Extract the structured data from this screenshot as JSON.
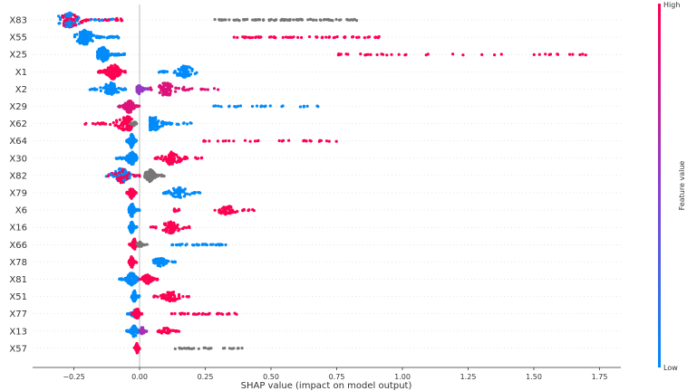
{
  "chart_data": {
    "type": "scatter",
    "subtype": "shap-beeswarm",
    "xlabel": "SHAP value (impact on model output)",
    "xlim": [
      -0.4,
      1.83
    ],
    "xticks": [
      -0.25,
      0.0,
      0.25,
      0.5,
      0.75,
      1.0,
      1.25,
      1.5,
      1.75
    ],
    "xtick_labels": [
      "−0.25",
      "0.00",
      "0.25",
      "0.50",
      "0.75",
      "1.00",
      "1.25",
      "1.50",
      "1.75"
    ],
    "grid": false,
    "zero_line": true,
    "colorbar": {
      "label": "Feature value",
      "high_label": "High",
      "low_label": "Low",
      "high_color": "#ff0052",
      "low_color": "#008bfb",
      "missing_color": "#777777",
      "placement": "right"
    },
    "features": [
      {
        "name": "X83",
        "clusters": [
          {
            "range": [
              -0.31,
              -0.09
            ],
            "peak": -0.27,
            "n": 160,
            "value": "mixed"
          },
          {
            "range": [
              -0.09,
              -0.04
            ],
            "peak": -0.08,
            "n": 10,
            "value": 1
          },
          {
            "range": [
              0.28,
              0.83
            ],
            "peak": 0.62,
            "n": 90,
            "value": null,
            "sparse": true
          }
        ]
      },
      {
        "name": "X55",
        "clusters": [
          {
            "range": [
              -0.25,
              -0.08
            ],
            "peak": -0.21,
            "n": 150,
            "value": 0
          },
          {
            "range": [
              0.35,
              0.93
            ],
            "peak": 0.65,
            "n": 60,
            "value": 1,
            "sparse": true
          }
        ]
      },
      {
        "name": "X25",
        "clusters": [
          {
            "range": [
              -0.16,
              -0.05
            ],
            "peak": -0.14,
            "n": 130,
            "value": 0
          },
          {
            "range": [
              0.75,
              1.73
            ],
            "peak": 1.5,
            "n": 40,
            "value": 1,
            "sparse": true
          }
        ]
      },
      {
        "name": "X1",
        "clusters": [
          {
            "range": [
              -0.16,
              -0.05
            ],
            "peak": -0.1,
            "n": 130,
            "value": 1
          },
          {
            "range": [
              0.06,
              0.24
            ],
            "peak": 0.17,
            "n": 80,
            "value": 0
          }
        ]
      },
      {
        "name": "X2",
        "clusters": [
          {
            "range": [
              -0.2,
              -0.05
            ],
            "peak": -0.11,
            "n": 90,
            "value": 0
          },
          {
            "range": [
              -0.01,
              0.04
            ],
            "peak": 0.0,
            "n": 60,
            "value": 0.55
          },
          {
            "range": [
              0.03,
              0.3
            ],
            "peak": 0.1,
            "n": 90,
            "value": 0.85
          }
        ]
      },
      {
        "name": "X29",
        "clusters": [
          {
            "range": [
              -0.08,
              0.0
            ],
            "peak": -0.04,
            "n": 90,
            "value": 0.85
          },
          {
            "range": [
              0.28,
              0.68
            ],
            "peak": 0.4,
            "n": 30,
            "value": 0,
            "sparse": true
          }
        ]
      },
      {
        "name": "X62",
        "clusters": [
          {
            "range": [
              -0.21,
              -0.03
            ],
            "peak": -0.05,
            "n": 110,
            "value": 1
          },
          {
            "range": [
              -0.04,
              -0.01
            ],
            "peak": -0.02,
            "n": 20,
            "value": null
          },
          {
            "range": [
              0.04,
              0.2
            ],
            "peak": 0.05,
            "n": 100,
            "value": 0
          }
        ]
      },
      {
        "name": "X64",
        "clusters": [
          {
            "range": [
              -0.05,
              -0.01
            ],
            "peak": -0.03,
            "n": 100,
            "value": 0
          },
          {
            "range": [
              0.24,
              0.75
            ],
            "peak": 0.4,
            "n": 30,
            "value": 1,
            "sparse": true
          }
        ]
      },
      {
        "name": "X30",
        "clusters": [
          {
            "range": [
              -0.09,
              -0.01
            ],
            "peak": -0.03,
            "n": 90,
            "value": 0
          },
          {
            "range": [
              0.05,
              0.24
            ],
            "peak": 0.12,
            "n": 90,
            "value": 1
          }
        ]
      },
      {
        "name": "X82",
        "clusters": [
          {
            "range": [
              -0.14,
              0.0
            ],
            "peak": -0.07,
            "n": 120,
            "value": "mixed"
          },
          {
            "range": [
              0.02,
              0.1
            ],
            "peak": 0.04,
            "n": 90,
            "value": null
          }
        ]
      },
      {
        "name": "X79",
        "clusters": [
          {
            "range": [
              -0.05,
              -0.01
            ],
            "peak": -0.03,
            "n": 80,
            "value": 1
          },
          {
            "range": [
              0.08,
              0.25
            ],
            "peak": 0.15,
            "n": 70,
            "value": 0
          }
        ]
      },
      {
        "name": "X6",
        "clusters": [
          {
            "range": [
              -0.04,
              0.0
            ],
            "peak": -0.03,
            "n": 100,
            "value": 0
          },
          {
            "range": [
              0.12,
              0.16
            ],
            "peak": 0.14,
            "n": 8,
            "value": 1
          },
          {
            "range": [
              0.26,
              0.44
            ],
            "peak": 0.33,
            "n": 50,
            "value": 1
          }
        ]
      },
      {
        "name": "X16",
        "clusters": [
          {
            "range": [
              -0.04,
              -0.01
            ],
            "peak": -0.03,
            "n": 80,
            "value": 0
          },
          {
            "range": [
              0.04,
              0.2
            ],
            "peak": 0.12,
            "n": 80,
            "value": 1
          }
        ]
      },
      {
        "name": "X66",
        "clusters": [
          {
            "range": [
              -0.04,
              -0.01
            ],
            "peak": -0.02,
            "n": 80,
            "value": 1
          },
          {
            "range": [
              -0.01,
              0.03
            ],
            "peak": 0.0,
            "n": 20,
            "value": null
          },
          {
            "range": [
              0.11,
              0.34
            ],
            "peak": 0.2,
            "n": 35,
            "value": 0,
            "sparse": true
          }
        ]
      },
      {
        "name": "X78",
        "clusters": [
          {
            "range": [
              -0.04,
              -0.01
            ],
            "peak": -0.03,
            "n": 80,
            "value": 1
          },
          {
            "range": [
              0.04,
              0.16
            ],
            "peak": 0.08,
            "n": 50,
            "value": 0
          }
        ]
      },
      {
        "name": "X81",
        "clusters": [
          {
            "range": [
              -0.08,
              0.0
            ],
            "peak": -0.03,
            "n": 90,
            "value": 0
          },
          {
            "range": [
              0.0,
              0.08
            ],
            "peak": 0.03,
            "n": 60,
            "value": 1
          }
        ]
      },
      {
        "name": "X51",
        "clusters": [
          {
            "range": [
              -0.03,
              0.0
            ],
            "peak": -0.02,
            "n": 80,
            "value": 0
          },
          {
            "range": [
              0.05,
              0.2
            ],
            "peak": 0.12,
            "n": 60,
            "value": 1
          }
        ]
      },
      {
        "name": "X77",
        "clusters": [
          {
            "range": [
              -0.05,
              0.0
            ],
            "peak": -0.02,
            "n": 40,
            "value": 0
          },
          {
            "range": [
              -0.03,
              0.01
            ],
            "peak": -0.01,
            "n": 70,
            "value": 1
          },
          {
            "range": [
              0.12,
              0.37
            ],
            "peak": 0.25,
            "n": 35,
            "value": 1,
            "sparse": true
          }
        ]
      },
      {
        "name": "X13",
        "clusters": [
          {
            "range": [
              -0.05,
              0.0
            ],
            "peak": -0.02,
            "n": 80,
            "value": 0
          },
          {
            "range": [
              0.0,
              0.03
            ],
            "peak": 0.01,
            "n": 40,
            "value": 0.6
          },
          {
            "range": [
              0.06,
              0.15
            ],
            "peak": 0.1,
            "n": 40,
            "value": 1
          }
        ]
      },
      {
        "name": "X57",
        "clusters": [
          {
            "range": [
              -0.02,
              0.0
            ],
            "peak": -0.01,
            "n": 70,
            "value": 1
          },
          {
            "range": [
              0.13,
              0.42
            ],
            "peak": 0.3,
            "n": 25,
            "value": null,
            "sparse": true
          }
        ]
      }
    ]
  }
}
